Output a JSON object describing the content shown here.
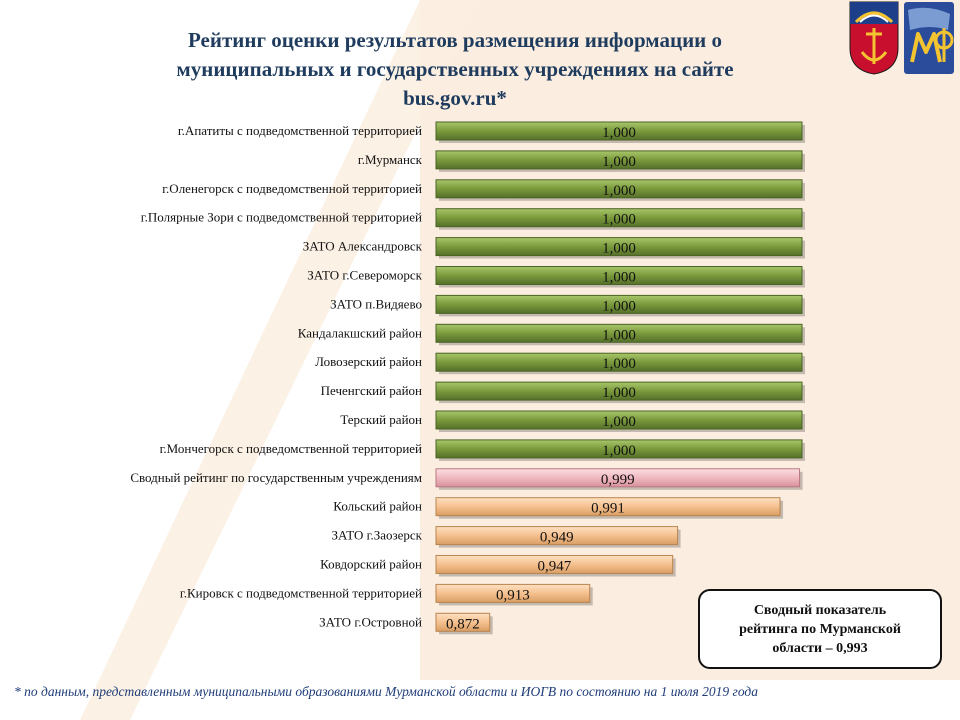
{
  "header": {
    "title_line1": "Рейтинг оценки результатов  размещения  информации о",
    "title_line2": "муниципальных и государственных учреждениях на сайте",
    "title_line3": "bus.gov.ru*"
  },
  "chart_data": {
    "type": "bar",
    "orientation": "horizontal",
    "categories": [
      "г.Апатиты с подведомственной территорией",
      "г.Мурманск",
      "г.Оленегорск с подведомственной территорией",
      "г.Полярные Зори с подведомственной территорией",
      "ЗАТО Александровск",
      "ЗАТО г.Североморск",
      "ЗАТО п.Видяево",
      "Кандалакшский район",
      "Ловозерский район",
      "Печенгский район",
      "Терский район",
      "г.Мончегорск с подведомственной территорией",
      "Сводный рейтинг по государственным учреждениям",
      "Кольский район",
      "ЗАТО г.Заозерск",
      "Ковдорский район",
      "г.Кировск с подведомственной территорией",
      "ЗАТО г.Островной"
    ],
    "values": [
      1.0,
      1.0,
      1.0,
      1.0,
      1.0,
      1.0,
      1.0,
      1.0,
      1.0,
      1.0,
      1.0,
      1.0,
      0.999,
      0.991,
      0.949,
      0.947,
      0.913,
      0.872
    ],
    "value_labels": [
      "1,000",
      "1,000",
      "1,000",
      "1,000",
      "1,000",
      "1,000",
      "1,000",
      "1,000",
      "1,000",
      "1,000",
      "1,000",
      "1,000",
      "0,999",
      "0,991",
      "0,949",
      "0,947",
      "0,913",
      "0,872"
    ],
    "bar_groups": [
      "top",
      "top",
      "top",
      "top",
      "top",
      "top",
      "top",
      "top",
      "top",
      "top",
      "top",
      "top",
      "summary",
      "lower",
      "lower",
      "lower",
      "lower",
      "lower"
    ],
    "group_colors": {
      "top": "#7a9a3c",
      "summary": "#f0b8c0",
      "lower": "#f5c08f"
    },
    "xlim": [
      0.85,
      1.0
    ],
    "grid": false,
    "legend": "none"
  },
  "summary_box": {
    "line1": "Сводный показатель",
    "line2": "рейтинга по Мурманской",
    "line3": "области – 0,993"
  },
  "footnote": "* по данным, представленным  муниципальными образованиями Мурманской области  и ИОГВ по состоянию на 1 июля 2019  года",
  "logos": [
    "murmansk-coat-of-arms-icon",
    "ministry-finance-emblem-icon"
  ]
}
